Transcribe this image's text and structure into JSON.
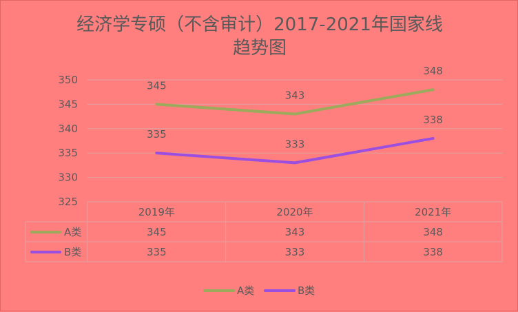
{
  "chart_data": {
    "type": "line",
    "title_line1": "经济学专硕（不含审计）2017-2021年国家线",
    "title_line2": "趋势图",
    "categories": [
      "2019年",
      "2020年",
      "2021年"
    ],
    "series": [
      {
        "name": "A类",
        "values": [
          345,
          343,
          348
        ],
        "color": "#9BAA5B"
      },
      {
        "name": "B类",
        "values": [
          335,
          333,
          338
        ],
        "color": "#9B4FE0"
      }
    ],
    "ylim": [
      325,
      350
    ],
    "yticks": [
      325,
      330,
      335,
      340,
      345,
      350
    ],
    "grid": true,
    "legend": "bottom",
    "data_table": true
  }
}
